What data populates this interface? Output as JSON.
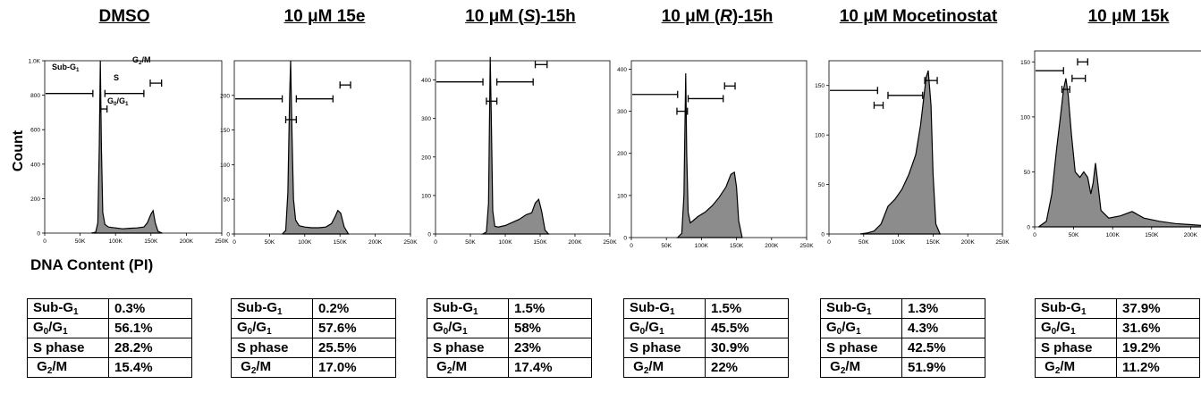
{
  "y_axis_label": "Count",
  "x_axis_label": "DNA Content (PI)",
  "gate_labels": {
    "subg1": "Sub-G",
    "s": "S",
    "g2m": "G",
    "g0g1": "G"
  },
  "row_labels": [
    "Sub-G1",
    "G0/G1",
    "S phase",
    "G2/M"
  ],
  "chart_data": [
    {
      "type": "area",
      "title": "DMSO",
      "ylabel": "Count",
      "xlabel": "DNA Content (PI)",
      "xlim": [
        0,
        250000
      ],
      "ylim": [
        0,
        1000
      ],
      "x_ticks": [
        "0",
        "50K",
        "100K",
        "150K",
        "200K",
        "250K"
      ],
      "y_ticks": [
        "0",
        "200",
        "400",
        "600",
        "800",
        "1.0K"
      ],
      "series": [
        {
          "x": [
            66000,
            72000,
            75000,
            77000,
            78500,
            80000,
            82000,
            85000,
            90000,
            100000,
            110000,
            120000,
            130000,
            140000,
            145000,
            150000,
            153000,
            156000,
            160000,
            166000
          ],
          "y": [
            0,
            5,
            60,
            500,
            1000,
            500,
            120,
            50,
            35,
            30,
            25,
            28,
            30,
            35,
            60,
            110,
            130,
            60,
            10,
            0
          ]
        }
      ],
      "table": {
        "Sub-G1": "0.3%",
        "G0/G1": "56.1%",
        "S phase": "28.2%",
        "G2/M": "15.4%"
      }
    },
    {
      "type": "area",
      "title": "10 μM 15e",
      "xlim": [
        0,
        250000
      ],
      "ylim": [
        0,
        250
      ],
      "x_ticks": [
        "0",
        "50K",
        "100K",
        "150K",
        "200K",
        "250K"
      ],
      "y_ticks": [
        "0",
        "50",
        "100",
        "150",
        "200"
      ],
      "series": [
        {
          "x": [
            68000,
            73000,
            76000,
            78500,
            80000,
            82000,
            84000,
            87000,
            92000,
            100000,
            110000,
            120000,
            130000,
            138000,
            143000,
            147000,
            151000,
            156000,
            162000
          ],
          "y": [
            0,
            5,
            60,
            200,
            250,
            140,
            50,
            20,
            12,
            10,
            9,
            9,
            10,
            15,
            25,
            34,
            30,
            10,
            0
          ]
        }
      ],
      "table": {
        "Sub-G1": "0.2%",
        "G0/G1": "57.6%",
        "S phase": "25.5%",
        "G2/M": "17.0%"
      }
    },
    {
      "type": "area",
      "title": "10 μM (S)-15h",
      "xlim": [
        0,
        250000
      ],
      "ylim": [
        0,
        450
      ],
      "x_ticks": [
        "0",
        "50K",
        "100K",
        "150K",
        "200K",
        "250K"
      ],
      "y_ticks": [
        "0",
        "100",
        "200",
        "300",
        "400"
      ],
      "series": [
        {
          "x": [
            68000,
            73000,
            76000,
            78500,
            80000,
            82000,
            85000,
            90000,
            100000,
            110000,
            120000,
            130000,
            138000,
            143000,
            148000,
            152000,
            157000,
            162000
          ],
          "y": [
            0,
            5,
            80,
            460,
            300,
            60,
            20,
            18,
            22,
            30,
            38,
            50,
            55,
            80,
            90,
            60,
            10,
            0
          ]
        }
      ],
      "table": {
        "Sub-G1": "1.5%",
        "G0/G1": "58%",
        "S phase": "23%",
        "G2/M": "17.4%"
      }
    },
    {
      "type": "area",
      "title": "10 μM (R)-15h",
      "xlim": [
        0,
        250000
      ],
      "ylim": [
        0,
        420
      ],
      "x_ticks": [
        "0",
        "50K",
        "100K",
        "150K",
        "200K",
        "250K"
      ],
      "y_ticks": [
        "0",
        "100",
        "200",
        "300",
        "400"
      ],
      "series": [
        {
          "x": [
            66000,
            72000,
            75000,
            77500,
            79000,
            81000,
            84000,
            88000,
            95000,
            105000,
            115000,
            125000,
            135000,
            142000,
            147000,
            150000,
            153000,
            158000
          ],
          "y": [
            0,
            10,
            100,
            390,
            200,
            60,
            35,
            40,
            50,
            60,
            75,
            95,
            120,
            150,
            155,
            120,
            40,
            0
          ]
        }
      ],
      "table": {
        "Sub-G1": "1.5%",
        "G0/G1": "45.5%",
        "S phase": "30.9%",
        "G2/M": "22%"
      }
    },
    {
      "type": "area",
      "title": "10 μM Mocetinostat",
      "xlim": [
        0,
        250000
      ],
      "ylim": [
        0,
        175
      ],
      "x_ticks": [
        "0",
        "50K",
        "100K",
        "150K",
        "200K",
        "250K"
      ],
      "y_ticks": [
        "0",
        "50",
        "100",
        "150"
      ],
      "series": [
        {
          "x": [
            45000,
            55000,
            65000,
            75000,
            85000,
            95000,
            105000,
            115000,
            125000,
            132000,
            137000,
            140000,
            143000,
            147000,
            150000,
            154000,
            160000
          ],
          "y": [
            0,
            1,
            3,
            10,
            28,
            35,
            45,
            60,
            80,
            110,
            140,
            158,
            165,
            130,
            60,
            10,
            0
          ]
        }
      ],
      "table": {
        "Sub-G1": "1.3%",
        "G0/G1": "4.3%",
        "S phase": "42.5%",
        "G2/M": "51.9%"
      }
    },
    {
      "type": "area",
      "title": "10 μM 15k",
      "xlim": [
        0,
        250000
      ],
      "ylim": [
        0,
        160
      ],
      "x_ticks": [
        "0",
        "50K",
        "100K",
        "150K",
        "200K",
        "250K"
      ],
      "y_ticks": [
        "0",
        "50",
        "100",
        "150"
      ],
      "series": [
        {
          "x": [
            5000,
            15000,
            22000,
            28000,
            33000,
            37000,
            40000,
            43000,
            47000,
            52000,
            58000,
            63000,
            68000,
            72000,
            75000,
            78000,
            81000,
            85000,
            95000,
            110000,
            125000,
            140000,
            160000,
            180000,
            200000,
            220000
          ],
          "y": [
            0,
            5,
            30,
            70,
            100,
            125,
            135,
            120,
            85,
            50,
            45,
            50,
            45,
            30,
            40,
            58,
            40,
            15,
            8,
            10,
            14,
            8,
            5,
            3,
            2,
            1
          ]
        }
      ],
      "table": {
        "Sub-G1": "37.9%",
        "G0/G1": "31.6%",
        "S phase": "19.2%",
        "G2/M": "11.2%"
      }
    }
  ]
}
